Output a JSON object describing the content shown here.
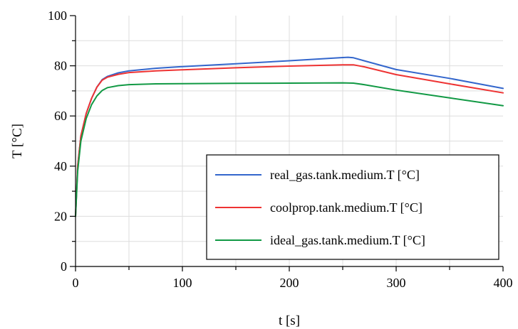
{
  "chart_data": {
    "type": "line",
    "xlabel": "t [s]",
    "ylabel": "T [°C]",
    "xlim": [
      0,
      400
    ],
    "ylim": [
      0,
      100
    ],
    "xticks": [
      "0",
      "100",
      "200",
      "300",
      "400"
    ],
    "yticks": [
      "0",
      "20",
      "40",
      "60",
      "80",
      "100"
    ],
    "grid": true,
    "legend_position": "bottom-right",
    "series": [
      {
        "name": "real_gas.tank.medium.T [°C]",
        "color": "#3366cc",
        "x": [
          0,
          2,
          5,
          10,
          15,
          20,
          25,
          30,
          40,
          50,
          75,
          100,
          150,
          200,
          250,
          255,
          260,
          270,
          300,
          350,
          400
        ],
        "y": [
          20,
          40,
          52,
          61,
          67,
          71.5,
          74.5,
          75.8,
          77.2,
          78.0,
          79.0,
          79.7,
          80.8,
          82.0,
          83.3,
          83.4,
          83.2,
          82.0,
          78.5,
          75.0,
          71.0
        ]
      },
      {
        "name": "coolprop.tank.medium.T [°C]",
        "color": "#ee3333",
        "x": [
          0,
          2,
          5,
          10,
          15,
          20,
          25,
          30,
          40,
          50,
          75,
          100,
          150,
          200,
          250,
          260,
          270,
          300,
          350,
          400
        ],
        "y": [
          20,
          40,
          52,
          61,
          67,
          71.5,
          74.3,
          75.5,
          76.6,
          77.3,
          78.0,
          78.4,
          79.2,
          79.9,
          80.4,
          80.4,
          79.6,
          76.5,
          72.8,
          69.2
        ]
      },
      {
        "name": "ideal_gas.tank.medium.T [°C]",
        "color": "#119944",
        "x": [
          0,
          2,
          5,
          10,
          15,
          20,
          25,
          30,
          40,
          50,
          75,
          100,
          150,
          200,
          250,
          260,
          270,
          300,
          350,
          400
        ],
        "y": [
          20,
          38,
          50,
          59,
          64.5,
          68,
          70.2,
          71.3,
          72.1,
          72.5,
          72.8,
          72.9,
          73.0,
          73.1,
          73.2,
          73.1,
          72.5,
          70.3,
          67.2,
          64.1
        ]
      }
    ]
  }
}
